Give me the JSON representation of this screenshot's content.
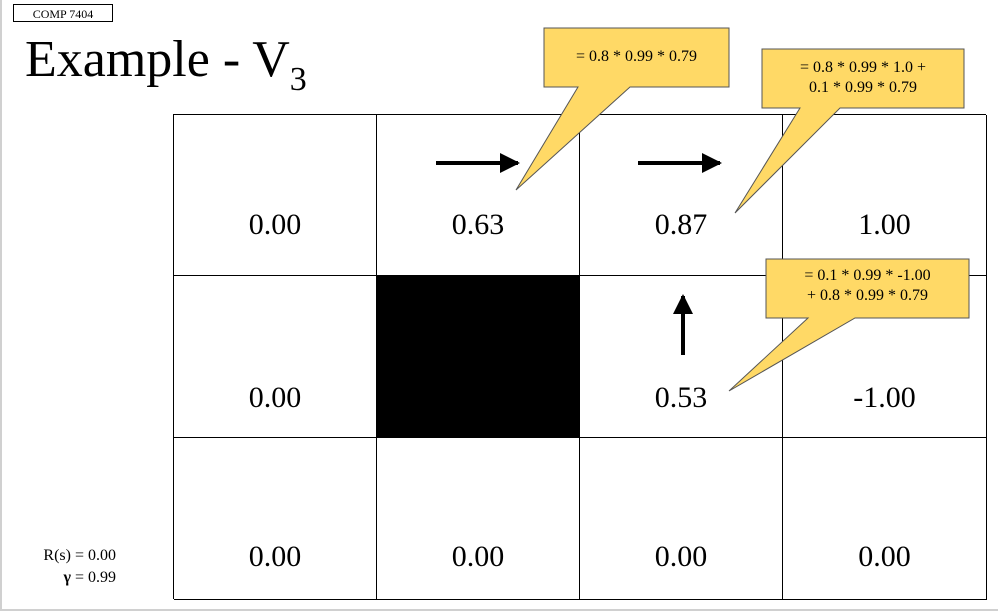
{
  "course_tag": "COMP 7404",
  "title": {
    "text": "Example - V",
    "subscript": "3"
  },
  "grid": {
    "rows": [
      {
        "cells": [
          {
            "value": "0.00"
          },
          {
            "value": "0.63",
            "policy": "right-arrow"
          },
          {
            "value": "0.87",
            "policy": "right-arrow"
          },
          {
            "value": "1.00"
          }
        ]
      },
      {
        "cells": [
          {
            "value": "0.00"
          },
          {
            "wall": true
          },
          {
            "value": "0.53",
            "policy": "up-arrow"
          },
          {
            "value": "-1.00"
          }
        ]
      },
      {
        "cells": [
          {
            "value": "0.00"
          },
          {
            "value": "0.00"
          },
          {
            "value": "0.00"
          },
          {
            "value": "0.00"
          }
        ]
      }
    ]
  },
  "callouts": [
    {
      "lines": [
        "= 0.8 * 0.99 * 0.79"
      ]
    },
    {
      "lines": [
        "= 0.8 * 0.99 * 1.0 +",
        "0.1 * 0.99 * 0.79"
      ]
    },
    {
      "lines": [
        "= 0.1 * 0.99 * -1.00",
        "+ 0.8 * 0.99 * 0.79"
      ]
    }
  ],
  "params": {
    "reward": "R(s) = 0.00",
    "gamma_symbol": "γ",
    "gamma_value": " = 0.99"
  },
  "colors": {
    "callout_fill": "#ffd966",
    "callout_border": "#555555",
    "wall": "#000000"
  }
}
